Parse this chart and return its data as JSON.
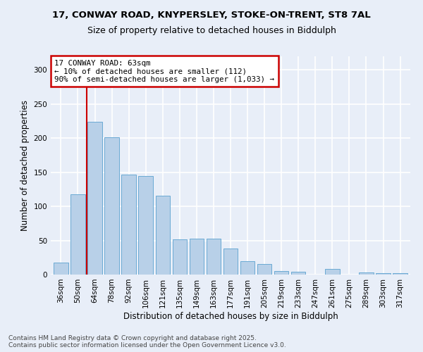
{
  "title_line1": "17, CONWAY ROAD, KNYPERSLEY, STOKE-ON-TRENT, ST8 7AL",
  "title_line2": "Size of property relative to detached houses in Biddulph",
  "xlabel": "Distribution of detached houses by size in Biddulph",
  "ylabel": "Number of detached properties",
  "categories": [
    "36sqm",
    "50sqm",
    "64sqm",
    "78sqm",
    "92sqm",
    "106sqm",
    "121sqm",
    "135sqm",
    "149sqm",
    "163sqm",
    "177sqm",
    "191sqm",
    "205sqm",
    "219sqm",
    "233sqm",
    "247sqm",
    "261sqm",
    "275sqm",
    "289sqm",
    "303sqm",
    "317sqm"
  ],
  "values": [
    18,
    118,
    224,
    201,
    147,
    145,
    116,
    52,
    53,
    53,
    38,
    20,
    16,
    5,
    4,
    0,
    8,
    0,
    3,
    2,
    2
  ],
  "bar_color": "#b8d0e8",
  "bar_edge_color": "#6aaad4",
  "vline_x": 1.5,
  "vline_color": "#cc0000",
  "annotation_text": "17 CONWAY ROAD: 63sqm\n← 10% of detached houses are smaller (112)\n90% of semi-detached houses are larger (1,033) →",
  "annotation_box_color": "#cc0000",
  "ylim": [
    0,
    320
  ],
  "yticks": [
    0,
    50,
    100,
    150,
    200,
    250,
    300
  ],
  "footer": "Contains HM Land Registry data © Crown copyright and database right 2025.\nContains public sector information licensed under the Open Government Licence v3.0.",
  "bg_color": "#e8eef8",
  "plot_bg_color": "#e8eef8",
  "title_fontsize": 9.5,
  "subtitle_fontsize": 9.0,
  "ylabel_fontsize": 8.5,
  "xlabel_fontsize": 8.5,
  "tick_fontsize": 7.5,
  "annotation_fontsize": 7.8,
  "footer_fontsize": 6.5
}
